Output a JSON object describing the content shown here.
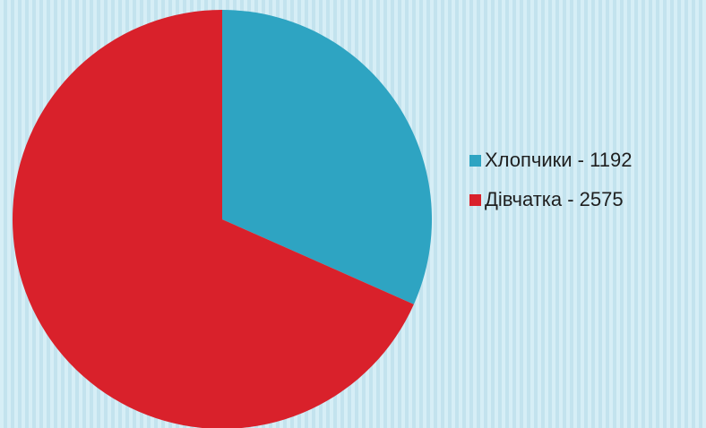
{
  "chart_data": {
    "type": "pie",
    "categories": [
      "Хлопчики - 1192",
      "Дівчатка - 2575"
    ],
    "values": [
      1192,
      2575
    ],
    "colors": [
      "#2ea4c2",
      "#d9212b"
    ],
    "legend": "right"
  }
}
